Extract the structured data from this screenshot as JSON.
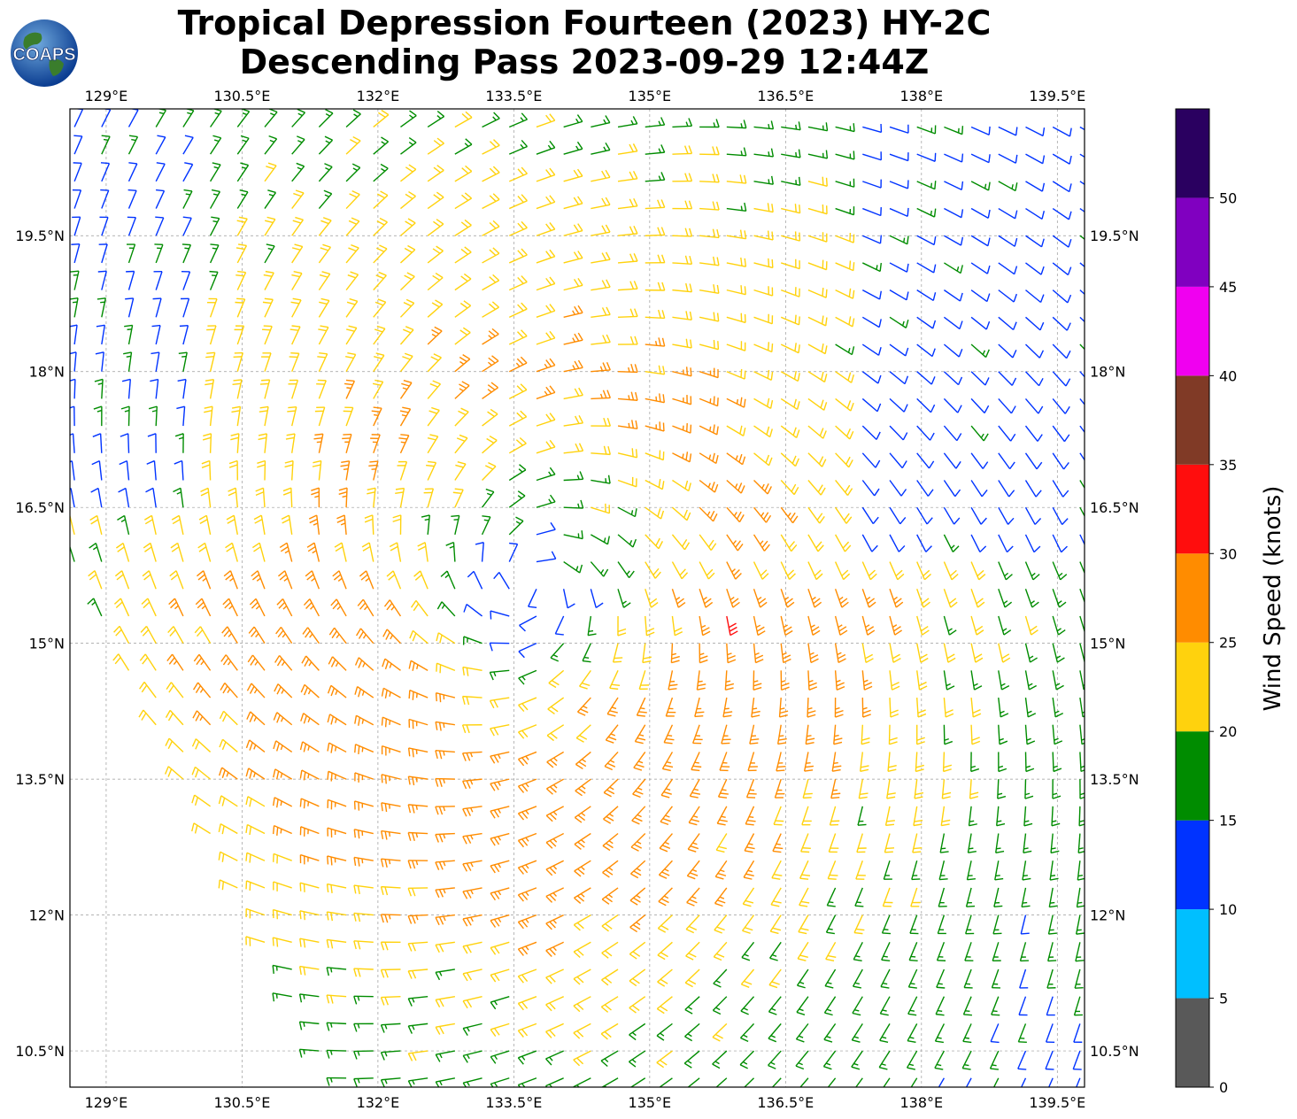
{
  "title": {
    "line1": "Tropical Depression Fourteen (2023) HY-2C",
    "line2": "Descending Pass 2023-09-29 12:44Z"
  },
  "logo": {
    "text": "COAPS",
    "icon": "globe-logo-icon"
  },
  "map": {
    "lon_ticks": [
      "129°E",
      "130.5°E",
      "132°E",
      "133.5°E",
      "135°E",
      "136.5°E",
      "138°E",
      "139.5°E"
    ],
    "lat_ticks": [
      "19.5°N",
      "18°N",
      "16.5°N",
      "15°N",
      "13.5°N",
      "12°N",
      "10.5°N"
    ],
    "lon_range": [
      128.6,
      139.8
    ],
    "lat_range": [
      10.1,
      20.9
    ],
    "storm_center": {
      "lon": 133.7,
      "lat": 15.65
    },
    "grid": true
  },
  "colorbar": {
    "label": "Wind Speed (knots)",
    "ticks": [
      "0",
      "5",
      "10",
      "15",
      "20",
      "25",
      "30",
      "35",
      "40",
      "45",
      "50"
    ],
    "bins": [
      {
        "min": 0,
        "max": 5,
        "color": "#595959"
      },
      {
        "min": 5,
        "max": 10,
        "color": "#00bfff"
      },
      {
        "min": 10,
        "max": 15,
        "color": "#0033ff"
      },
      {
        "min": 15,
        "max": 20,
        "color": "#008c00"
      },
      {
        "min": 20,
        "max": 25,
        "color": "#ffd20d"
      },
      {
        "min": 25,
        "max": 30,
        "color": "#ff8c00"
      },
      {
        "min": 30,
        "max": 35,
        "color": "#ff0d0d"
      },
      {
        "min": 35,
        "max": 40,
        "color": "#803a26"
      },
      {
        "min": 40,
        "max": 45,
        "color": "#f000f0"
      },
      {
        "min": 45,
        "max": 50,
        "color": "#8000c0"
      },
      {
        "min": 50,
        "max": 55,
        "color": "#2a0060"
      }
    ]
  }
}
